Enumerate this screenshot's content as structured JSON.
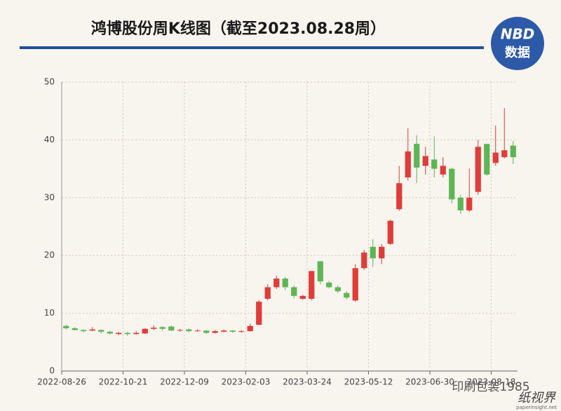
{
  "chart_data": {
    "type": "candlestick",
    "title": "鸿博股份周K线图（截至2023.08.28周）",
    "logo": {
      "top": "NBD",
      "bottom": "数据"
    },
    "watermark": {
      "main": "印刷包装1985",
      "brand": "纸视界",
      "site": "paperinsight.net"
    },
    "categories": [
      "2022-08-26",
      null,
      null,
      null,
      null,
      null,
      null,
      "2022-10-21",
      null,
      null,
      null,
      null,
      null,
      null,
      "2022-12-09",
      null,
      null,
      null,
      null,
      null,
      null,
      "2023-02-03",
      null,
      null,
      null,
      null,
      null,
      null,
      "2023-03-24",
      null,
      null,
      null,
      null,
      null,
      null,
      "2023-05-12",
      null,
      null,
      null,
      null,
      null,
      null,
      "2023-06-30",
      null,
      null,
      null,
      null,
      null,
      null,
      "2023-08-18",
      null,
      null
    ],
    "series": [
      {
        "open": [
          7.8,
          7.4,
          7.1,
          7.0,
          7.1,
          6.8,
          6.4,
          6.6,
          6.4,
          6.5,
          7.3,
          7.6,
          7.7,
          7.0,
          7.2,
          6.9,
          7.0,
          6.6,
          6.8,
          7.0,
          6.9,
          6.9,
          8.0,
          12.5,
          14.5,
          16.0,
          14.5,
          12.5,
          12.5,
          19.0,
          15.3,
          14.5,
          13.5,
          12.2,
          17.8,
          21.5,
          19.5,
          22.0,
          28.0,
          33.5,
          39.3,
          35.5,
          36.6,
          34.0,
          35.0,
          30.0,
          27.8,
          31.0,
          39.3,
          36.0,
          37.0,
          39.0
        ],
        "close": [
          7.4,
          7.1,
          6.9,
          7.2,
          6.8,
          6.5,
          6.6,
          6.4,
          6.6,
          7.3,
          7.5,
          7.3,
          7.0,
          7.1,
          6.9,
          7.0,
          6.6,
          6.9,
          7.0,
          6.8,
          6.9,
          7.8,
          12.0,
          14.5,
          16.0,
          14.5,
          13.0,
          13.0,
          17.3,
          15.5,
          14.5,
          13.8,
          12.7,
          17.8,
          20.5,
          19.5,
          21.5,
          26.0,
          32.5,
          38.0,
          35.2,
          37.2,
          35.0,
          35.5,
          29.7,
          27.8,
          30.0,
          38.8,
          34.0,
          37.8,
          38.2,
          37.0
        ],
        "low": [
          7.2,
          7.0,
          6.7,
          6.9,
          6.5,
          6.3,
          6.2,
          6.1,
          6.3,
          6.4,
          7.1,
          7.0,
          6.9,
          6.8,
          6.7,
          6.8,
          6.4,
          6.5,
          6.7,
          6.6,
          6.7,
          6.8,
          7.9,
          12.2,
          14.2,
          14.0,
          12.6,
          12.3,
          12.2,
          15.0,
          14.3,
          13.5,
          12.4,
          12.0,
          17.5,
          18.0,
          18.5,
          21.8,
          27.7,
          33.0,
          32.5,
          34.0,
          33.5,
          33.5,
          29.0,
          27.2,
          27.5,
          30.5,
          33.8,
          35.5,
          36.8,
          35.8
        ],
        "high": [
          8.0,
          7.6,
          7.2,
          7.6,
          7.2,
          7.0,
          6.8,
          6.8,
          6.9,
          7.4,
          7.9,
          7.8,
          7.9,
          7.3,
          7.4,
          7.2,
          7.1,
          7.1,
          7.2,
          7.1,
          7.1,
          8.2,
          12.3,
          15.0,
          16.5,
          16.3,
          14.8,
          13.2,
          17.3,
          19.0,
          15.6,
          14.8,
          13.8,
          18.5,
          21.0,
          22.8,
          22.0,
          26.2,
          35.5,
          42.0,
          40.8,
          38.8,
          40.6,
          37.0,
          35.2,
          30.5,
          35.0,
          40.0,
          39.3,
          42.5,
          45.5,
          39.8
        ]
      }
    ],
    "up_color": "#df3c3a",
    "down_color": "#5db656",
    "ylim": [
      0,
      50
    ],
    "yticks": [
      0,
      10,
      20,
      30,
      40,
      50
    ],
    "grid": true
  }
}
